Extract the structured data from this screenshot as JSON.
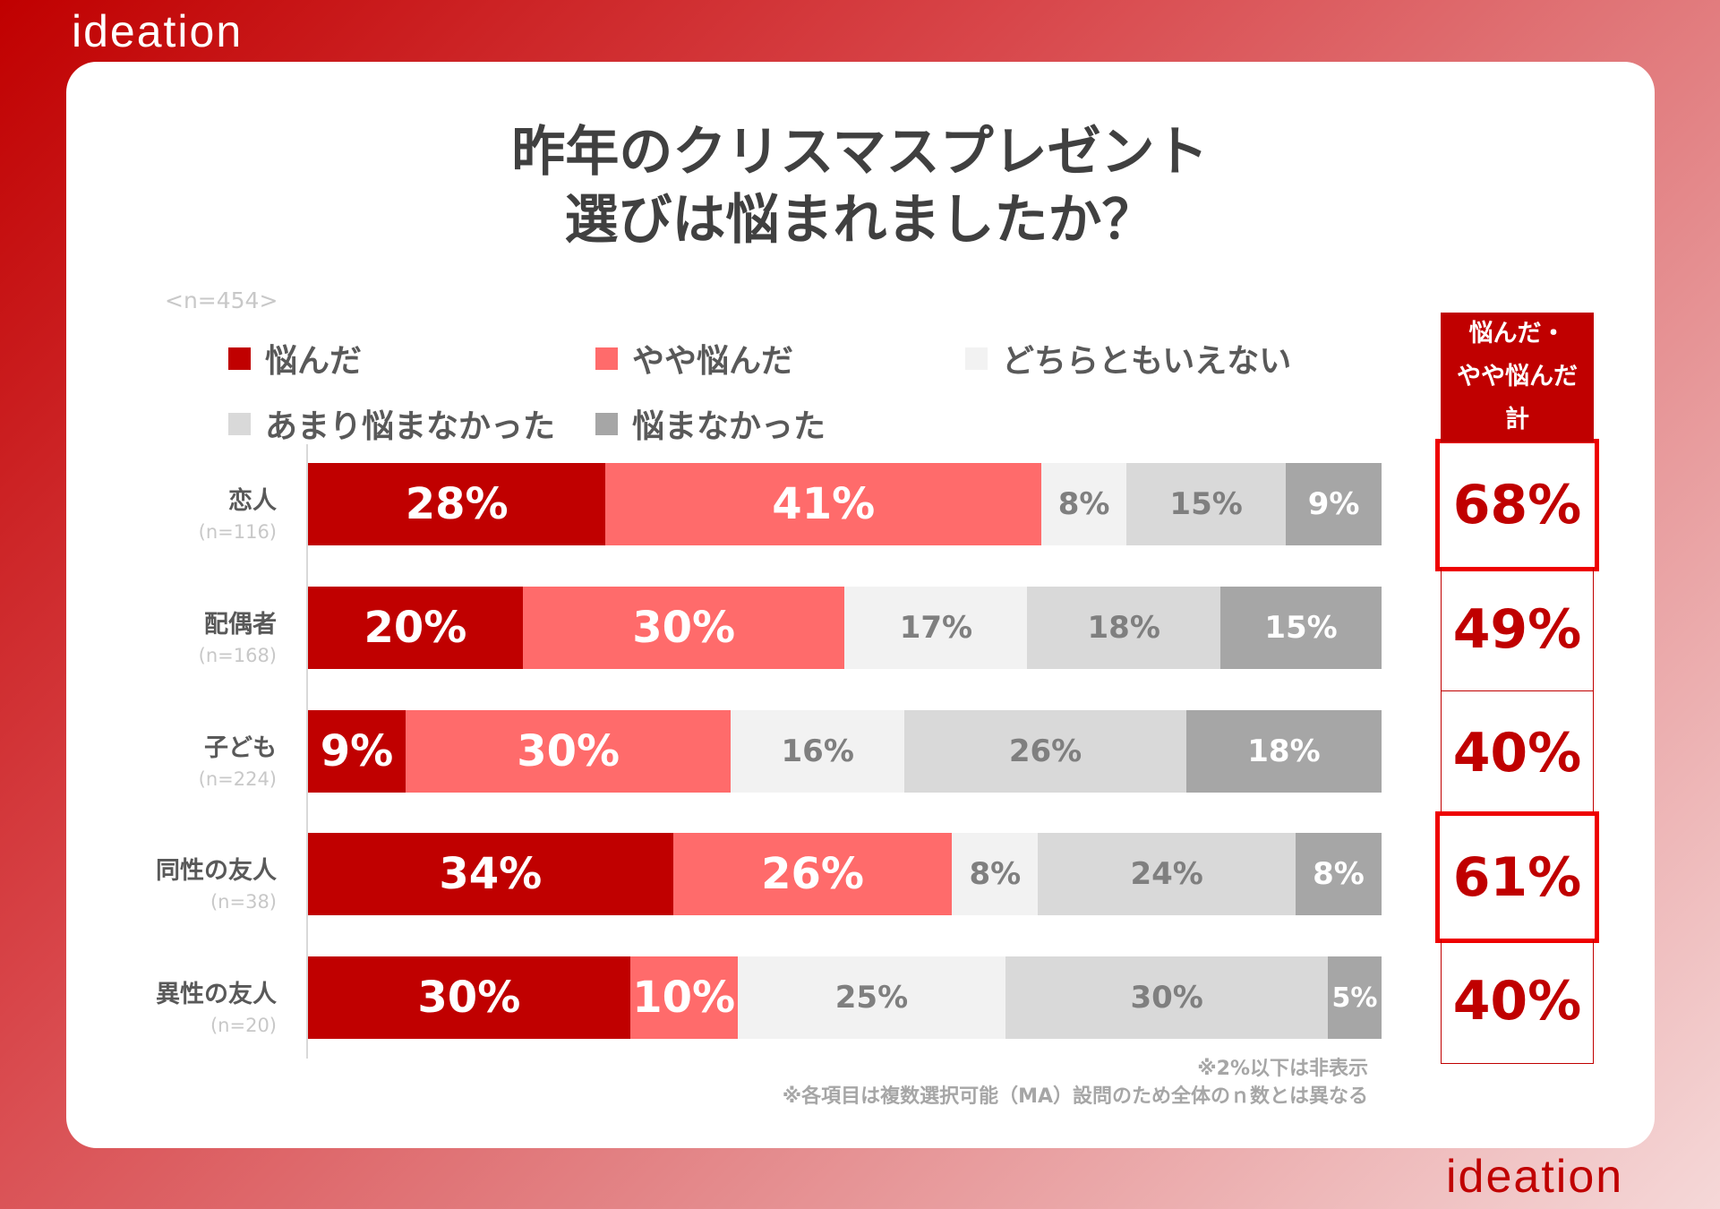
{
  "brand": {
    "logo": "ideation"
  },
  "chart_data": {
    "type": "bar",
    "orientation": "horizontal-stacked-100",
    "title": [
      "昨年のクリスマスプレゼント",
      "選びは悩まれましたか？"
    ],
    "sample": "<n=454>",
    "legend": [
      {
        "label": "悩んだ",
        "color": "#c00000"
      },
      {
        "label": "やや悩んだ",
        "color": "#ff6b6b"
      },
      {
        "label": "どちらともいえない",
        "color": "#f2f2f2"
      },
      {
        "label": "あまり悩まなかった",
        "color": "#d9d9d9"
      },
      {
        "label": "悩まなかった",
        "color": "#a6a6a6"
      }
    ],
    "categories": [
      {
        "name": "恋人",
        "n": "(n=116)",
        "values": [
          28,
          41,
          8,
          15,
          9
        ],
        "total": "68%",
        "highlight": true
      },
      {
        "name": "配偶者",
        "n": "(n=168)",
        "values": [
          20,
          30,
          17,
          18,
          15
        ],
        "total": "49%",
        "highlight": false
      },
      {
        "name": "子ども",
        "n": "(n=224)",
        "values": [
          9,
          30,
          16,
          26,
          18
        ],
        "total": "40%",
        "highlight": false
      },
      {
        "name": "同性の友人",
        "n": "(n=38)",
        "values": [
          34,
          26,
          8,
          24,
          8
        ],
        "total": "61%",
        "highlight": true
      },
      {
        "name": "異性の友人",
        "n": "(n=20)",
        "values": [
          30,
          10,
          25,
          30,
          5
        ],
        "total": "40%",
        "highlight": false
      }
    ],
    "total_header": [
      "悩んだ・",
      "やや悩んだ",
      "計"
    ],
    "notes": [
      "※2%以下は非表示",
      "※各項目は複数選択可能（MA）設問のため全体のｎ数とは異なる"
    ]
  }
}
